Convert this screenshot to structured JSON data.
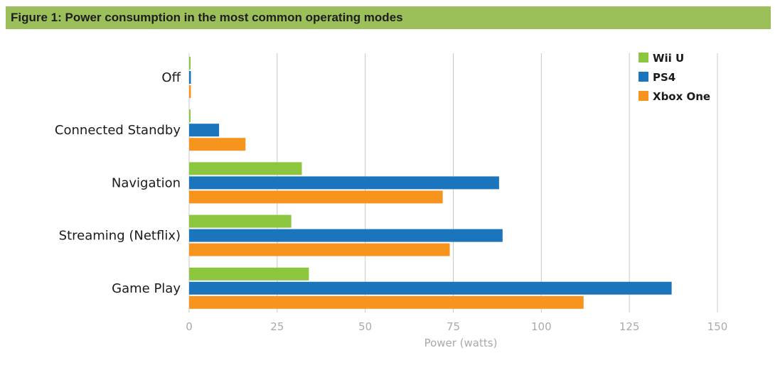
{
  "figure": {
    "title": "Figure 1: Power consumption in the most common operating modes",
    "title_bar_color": "#9bbf59"
  },
  "chart_data": {
    "type": "bar",
    "orientation": "horizontal",
    "categories": [
      "Off",
      "Connected Standby",
      "Navigation",
      "Streaming (Netflix)",
      "Game Play"
    ],
    "series": [
      {
        "name": "Wii U",
        "color": "#8cc63f",
        "values": [
          0.4,
          0.4,
          32,
          29,
          34
        ]
      },
      {
        "name": "PS4",
        "color": "#1b75bc",
        "values": [
          0.5,
          8.5,
          88,
          89,
          137
        ]
      },
      {
        "name": "Xbox One",
        "color": "#f7941d",
        "values": [
          0.5,
          16,
          72,
          74,
          112
        ]
      }
    ],
    "xlabel": "Power (watts)",
    "ylabel": "",
    "xlim": [
      0,
      150
    ],
    "xticks": [
      0,
      25,
      50,
      75,
      100,
      125,
      150
    ],
    "grid": true,
    "legend_position": "top-right"
  }
}
